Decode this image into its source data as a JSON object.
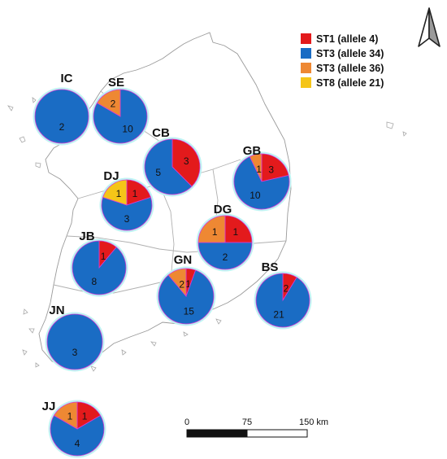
{
  "legend": [
    {
      "label": "ST1 (allele 4)",
      "color": "#e31a1c"
    },
    {
      "label": "ST3 (allele 34)",
      "color": "#1a6cc4"
    },
    {
      "label": "ST3 (allele 36)",
      "color": "#ee8833"
    },
    {
      "label": "ST8 (allele 21)",
      "color": "#f5c518"
    }
  ],
  "regions": [
    {
      "code": "IC",
      "slices": [
        {
          "type": 1,
          "count": 2
        }
      ]
    },
    {
      "code": "SE",
      "slices": [
        {
          "type": 1,
          "count": 10
        },
        {
          "type": 2,
          "count": 2
        }
      ]
    },
    {
      "code": "CB",
      "slices": [
        {
          "type": 0,
          "count": 3
        },
        {
          "type": 1,
          "count": 5
        }
      ]
    },
    {
      "code": "GB",
      "slices": [
        {
          "type": 0,
          "count": 3
        },
        {
          "type": 1,
          "count": 10
        },
        {
          "type": 2,
          "count": 1
        }
      ]
    },
    {
      "code": "DJ",
      "slices": [
        {
          "type": 0,
          "count": 1
        },
        {
          "type": 1,
          "count": 3
        },
        {
          "type": 3,
          "count": 1
        }
      ]
    },
    {
      "code": "DG",
      "slices": [
        {
          "type": 0,
          "count": 1
        },
        {
          "type": 1,
          "count": 2
        },
        {
          "type": 2,
          "count": 1
        }
      ]
    },
    {
      "code": "JB",
      "slices": [
        {
          "type": 0,
          "count": 1
        },
        {
          "type": 1,
          "count": 8
        }
      ]
    },
    {
      "code": "GN",
      "slices": [
        {
          "type": 0,
          "count": 1
        },
        {
          "type": 1,
          "count": 15
        },
        {
          "type": 2,
          "count": 2
        }
      ]
    },
    {
      "code": "BS",
      "slices": [
        {
          "type": 0,
          "count": 2
        },
        {
          "type": 1,
          "count": 21
        }
      ]
    },
    {
      "code": "JN",
      "slices": [
        {
          "type": 1,
          "count": 3
        }
      ]
    },
    {
      "code": "JJ",
      "slices": [
        {
          "type": 0,
          "count": 1
        },
        {
          "type": 1,
          "count": 4
        },
        {
          "type": 2,
          "count": 1
        }
      ]
    }
  ],
  "scale_bar": {
    "ticks": [
      "0",
      "75",
      "150 km"
    ]
  },
  "north_arrow": "north-arrow-icon"
}
